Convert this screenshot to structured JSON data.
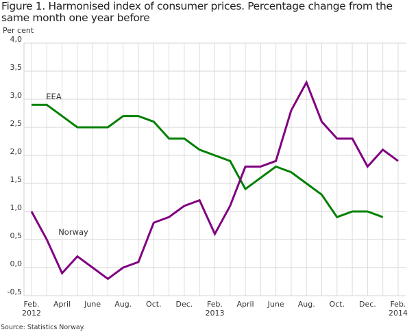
{
  "title": "Figure 1. Harmonised index of consumer prices. Percentage change from the same month one year before",
  "source": "Source: Statistics Norway.",
  "chart_data": {
    "type": "line",
    "title": "Figure 1. Harmonised index of consumer prices. Percentage change from the same month one year before",
    "ylabel": "Per cent",
    "xlabel": "",
    "ylim": [
      -0.5,
      4.0
    ],
    "yticks": [
      -0.5,
      0.0,
      0.5,
      1.0,
      1.5,
      2.0,
      2.5,
      3.0,
      3.5,
      4.0
    ],
    "ytick_labels": [
      "-0,5",
      "0,0",
      "0,5",
      "1,0",
      "1,5",
      "2,0",
      "2,5",
      "3,0",
      "3,5",
      "4,0"
    ],
    "grid": true,
    "x": [
      "2012-02",
      "2012-03",
      "2012-04",
      "2012-05",
      "2012-06",
      "2012-07",
      "2012-08",
      "2012-09",
      "2012-10",
      "2012-11",
      "2012-12",
      "2013-01",
      "2013-02",
      "2013-03",
      "2013-04",
      "2013-05",
      "2013-06",
      "2013-07",
      "2013-08",
      "2013-09",
      "2013-10",
      "2013-11",
      "2013-12",
      "2014-01",
      "2014-02"
    ],
    "xtick_labels": [
      {
        "index": 0,
        "line1": "Feb.",
        "line2": "2012"
      },
      {
        "index": 2,
        "line1": "April",
        "line2": ""
      },
      {
        "index": 4,
        "line1": "June",
        "line2": ""
      },
      {
        "index": 6,
        "line1": "Aug.",
        "line2": ""
      },
      {
        "index": 8,
        "line1": "Oct.",
        "line2": ""
      },
      {
        "index": 10,
        "line1": "Dec.",
        "line2": ""
      },
      {
        "index": 12,
        "line1": "Feb.",
        "line2": "2013"
      },
      {
        "index": 14,
        "line1": "April",
        "line2": ""
      },
      {
        "index": 16,
        "line1": "June",
        "line2": ""
      },
      {
        "index": 18,
        "line1": "Aug.",
        "line2": ""
      },
      {
        "index": 20,
        "line1": "Oct.",
        "line2": ""
      },
      {
        "index": 22,
        "line1": "Dec.",
        "line2": ""
      },
      {
        "index": 24,
        "line1": "Feb.",
        "line2": "2014"
      }
    ],
    "series": [
      {
        "name": "EEA",
        "color": "#008000",
        "label_anchor": {
          "index": 1,
          "value": 3.1
        },
        "values": [
          2.9,
          2.9,
          2.7,
          2.5,
          2.5,
          2.5,
          2.7,
          2.7,
          2.6,
          2.3,
          2.3,
          2.1,
          2.0,
          1.9,
          1.4,
          1.6,
          1.8,
          1.7,
          1.5,
          1.3,
          0.9,
          1.0,
          1.0,
          0.9,
          null
        ]
      },
      {
        "name": "Norway",
        "color": "#800080",
        "label_anchor": {
          "index": 1.4,
          "value": 0.5
        },
        "values": [
          1.0,
          0.5,
          -0.1,
          0.2,
          0.0,
          -0.2,
          0.0,
          0.1,
          0.8,
          0.9,
          1.1,
          1.2,
          0.6,
          1.1,
          1.8,
          1.8,
          1.9,
          2.8,
          3.3,
          2.6,
          2.3,
          2.3,
          1.8,
          2.1,
          1.9
        ]
      }
    ]
  }
}
